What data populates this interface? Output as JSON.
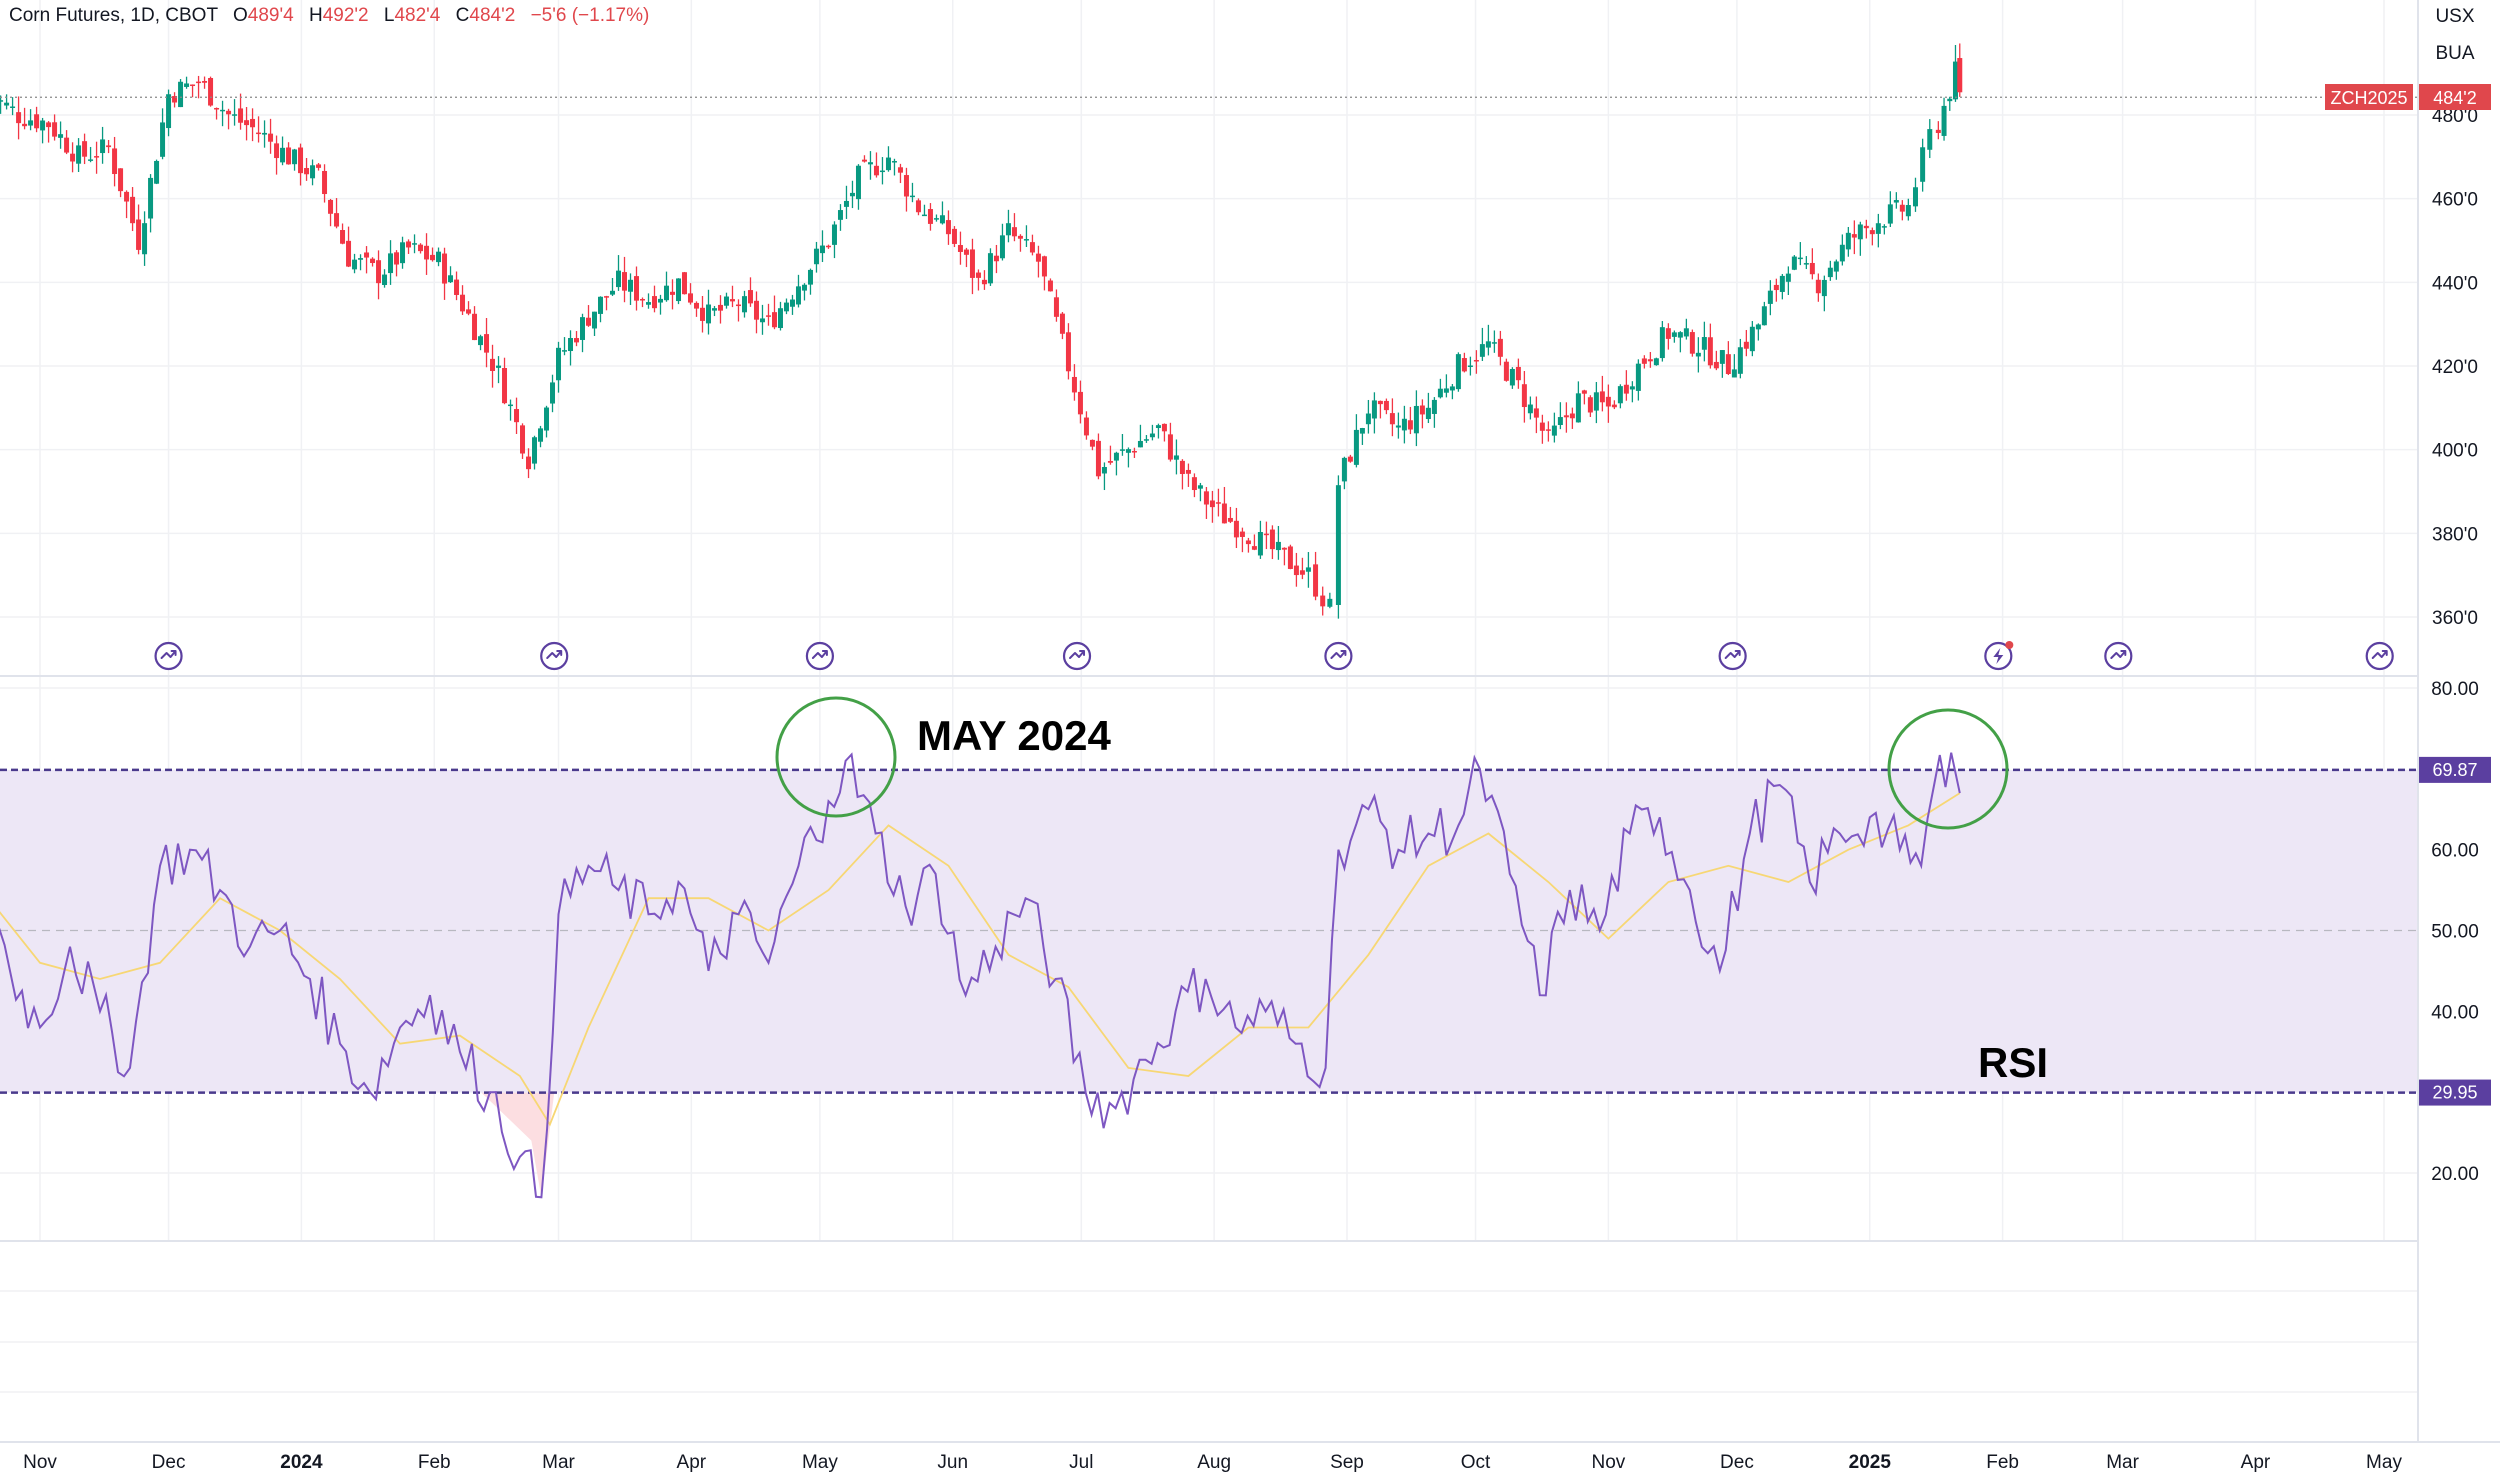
{
  "header": {
    "symbol": "Corn Futures, 1D, CBOT",
    "open_label": "O",
    "open": "489'4",
    "high_label": "H",
    "high": "492'2",
    "low_label": "L",
    "low": "482'4",
    "close_label": "C",
    "close": "484'2",
    "change": "−5'6 (−1.17%)"
  },
  "right_panel": {
    "currency": "USX",
    "unit": "BUA"
  },
  "price_tag": {
    "symbol": "ZCH2025",
    "value": "484'2"
  },
  "rsi_tags": {
    "upper": "69.87",
    "lower": "29.95"
  },
  "annotations": {
    "may": "MAY 2024",
    "rsi": "RSI"
  },
  "colors": {
    "up": "#089981",
    "down": "#f23645",
    "rsi": "#7e57c2",
    "rsi_ma": "#f7d774",
    "band": "#ede7f6",
    "circle": "#43a047"
  },
  "icons": [
    "event-icon",
    "event-icon",
    "event-icon",
    "event-icon",
    "event-icon",
    "event-icon",
    "flash-event-icon",
    "event-icon",
    "event-icon"
  ],
  "chart_data": [
    {
      "type": "candlestick",
      "title": "Corn Futures, 1D, CBOT",
      "x_ticks": [
        "Nov",
        "Dec",
        "2024",
        "Feb",
        "Mar",
        "Apr",
        "May",
        "Jun",
        "Jul",
        "Aug",
        "Sep",
        "Oct",
        "Nov",
        "Dec",
        "2025",
        "Feb",
        "Mar",
        "Apr",
        "May"
      ],
      "y_ticks": [
        "360'0",
        "380'0",
        "400'0",
        "420'0",
        "440'0",
        "460'0",
        "480'0"
      ],
      "ylim": [
        350,
        495
      ],
      "last_close": 484.25,
      "close_path": [
        {
          "x": "2023-10-20",
          "y": 485
        },
        {
          "x": "2023-10-27",
          "y": 480
        },
        {
          "x": "2023-11-03",
          "y": 478
        },
        {
          "x": "2023-11-10",
          "y": 470
        },
        {
          "x": "2023-11-17",
          "y": 472
        },
        {
          "x": "2023-11-24",
          "y": 450
        },
        {
          "x": "2023-12-01",
          "y": 485
        },
        {
          "x": "2023-12-08",
          "y": 488
        },
        {
          "x": "2023-12-15",
          "y": 480
        },
        {
          "x": "2023-12-22",
          "y": 476
        },
        {
          "x": "2023-12-29",
          "y": 470
        },
        {
          "x": "2024-01-05",
          "y": 465
        },
        {
          "x": "2024-01-12",
          "y": 446
        },
        {
          "x": "2024-01-19",
          "y": 442
        },
        {
          "x": "2024-01-26",
          "y": 448
        },
        {
          "x": "2024-02-02",
          "y": 445
        },
        {
          "x": "2024-02-09",
          "y": 432
        },
        {
          "x": "2024-02-16",
          "y": 418
        },
        {
          "x": "2024-02-23",
          "y": 398
        },
        {
          "x": "2024-03-01",
          "y": 422
        },
        {
          "x": "2024-03-08",
          "y": 432
        },
        {
          "x": "2024-03-15",
          "y": 440
        },
        {
          "x": "2024-03-22",
          "y": 436
        },
        {
          "x": "2024-03-29",
          "y": 440
        },
        {
          "x": "2024-04-05",
          "y": 432
        },
        {
          "x": "2024-04-12",
          "y": 435
        },
        {
          "x": "2024-04-19",
          "y": 430
        },
        {
          "x": "2024-04-26",
          "y": 440
        },
        {
          "x": "2024-05-03",
          "y": 450
        },
        {
          "x": "2024-05-10",
          "y": 465
        },
        {
          "x": "2024-05-17",
          "y": 470
        },
        {
          "x": "2024-05-24",
          "y": 458
        },
        {
          "x": "2024-05-31",
          "y": 452
        },
        {
          "x": "2024-06-07",
          "y": 440
        },
        {
          "x": "2024-06-14",
          "y": 452
        },
        {
          "x": "2024-06-21",
          "y": 445
        },
        {
          "x": "2024-06-28",
          "y": 420
        },
        {
          "x": "2024-07-05",
          "y": 395
        },
        {
          "x": "2024-07-12",
          "y": 400
        },
        {
          "x": "2024-07-19",
          "y": 405
        },
        {
          "x": "2024-07-26",
          "y": 392
        },
        {
          "x": "2024-08-02",
          "y": 385
        },
        {
          "x": "2024-08-09",
          "y": 380
        },
        {
          "x": "2024-08-16",
          "y": 375
        },
        {
          "x": "2024-08-23",
          "y": 370
        },
        {
          "x": "2024-08-28",
          "y": 362
        },
        {
          "x": "2024-08-30",
          "y": 392
        },
        {
          "x": "2024-09-06",
          "y": 410
        },
        {
          "x": "2024-09-13",
          "y": 405
        },
        {
          "x": "2024-09-20",
          "y": 410
        },
        {
          "x": "2024-09-27",
          "y": 420
        },
        {
          "x": "2024-10-04",
          "y": 425
        },
        {
          "x": "2024-10-11",
          "y": 415
        },
        {
          "x": "2024-10-18",
          "y": 402
        },
        {
          "x": "2024-10-25",
          "y": 412
        },
        {
          "x": "2024-11-01",
          "y": 410
        },
        {
          "x": "2024-11-08",
          "y": 420
        },
        {
          "x": "2024-11-15",
          "y": 428
        },
        {
          "x": "2024-11-22",
          "y": 425
        },
        {
          "x": "2024-11-29",
          "y": 420
        },
        {
          "x": "2024-12-06",
          "y": 430
        },
        {
          "x": "2024-12-13",
          "y": 445
        },
        {
          "x": "2024-12-20",
          "y": 440
        },
        {
          "x": "2024-12-27",
          "y": 450
        },
        {
          "x": "2025-01-03",
          "y": 455
        },
        {
          "x": "2025-01-10",
          "y": 458
        },
        {
          "x": "2025-01-15",
          "y": 475
        },
        {
          "x": "2025-01-17",
          "y": 478
        },
        {
          "x": "2025-01-21",
          "y": 490
        },
        {
          "x": "2025-01-22",
          "y": 484.25
        }
      ]
    },
    {
      "type": "line",
      "title": "",
      "y_ticks": [
        "20.00",
        "40.00",
        "50.00",
        "60.00",
        "80.00"
      ],
      "ylim": [
        12,
        82
      ],
      "bands": [
        29.95,
        69.87
      ],
      "midline": 50,
      "series": [
        {
          "values": [
            {
              "x": "2023-10-20",
              "y": 55
            },
            {
              "x": "2023-10-25",
              "y": 45
            },
            {
              "x": "2023-11-01",
              "y": 38
            },
            {
              "x": "2023-11-08",
              "y": 48
            },
            {
              "x": "2023-11-15",
              "y": 40
            },
            {
              "x": "2023-11-22",
              "y": 33
            },
            {
              "x": "2023-11-29",
              "y": 58
            },
            {
              "x": "2023-12-06",
              "y": 60
            },
            {
              "x": "2023-12-13",
              "y": 55
            },
            {
              "x": "2023-12-20",
              "y": 48
            },
            {
              "x": "2023-12-27",
              "y": 50
            },
            {
              "x": "2024-01-03",
              "y": 44
            },
            {
              "x": "2024-01-10",
              "y": 36
            },
            {
              "x": "2024-01-17",
              "y": 30
            },
            {
              "x": "2024-01-24",
              "y": 38
            },
            {
              "x": "2024-01-31",
              "y": 42
            },
            {
              "x": "2024-02-07",
              "y": 35
            },
            {
              "x": "2024-02-14",
              "y": 30
            },
            {
              "x": "2024-02-21",
              "y": 22
            },
            {
              "x": "2024-02-26",
              "y": 17
            },
            {
              "x": "2024-03-01",
              "y": 52
            },
            {
              "x": "2024-03-08",
              "y": 58
            },
            {
              "x": "2024-03-15",
              "y": 55
            },
            {
              "x": "2024-03-22",
              "y": 52
            },
            {
              "x": "2024-03-29",
              "y": 56
            },
            {
              "x": "2024-04-05",
              "y": 45
            },
            {
              "x": "2024-04-12",
              "y": 52
            },
            {
              "x": "2024-04-19",
              "y": 46
            },
            {
              "x": "2024-04-26",
              "y": 58
            },
            {
              "x": "2024-05-03",
              "y": 66
            },
            {
              "x": "2024-05-07",
              "y": 71
            },
            {
              "x": "2024-05-14",
              "y": 62
            },
            {
              "x": "2024-05-21",
              "y": 53
            },
            {
              "x": "2024-05-28",
              "y": 57
            },
            {
              "x": "2024-06-04",
              "y": 42
            },
            {
              "x": "2024-06-11",
              "y": 48
            },
            {
              "x": "2024-06-18",
              "y": 54
            },
            {
              "x": "2024-06-25",
              "y": 44
            },
            {
              "x": "2024-07-02",
              "y": 30
            },
            {
              "x": "2024-07-09",
              "y": 28
            },
            {
              "x": "2024-07-16",
              "y": 34
            },
            {
              "x": "2024-07-23",
              "y": 40
            },
            {
              "x": "2024-07-30",
              "y": 44
            },
            {
              "x": "2024-08-06",
              "y": 38
            },
            {
              "x": "2024-08-13",
              "y": 40
            },
            {
              "x": "2024-08-20",
              "y": 36
            },
            {
              "x": "2024-08-27",
              "y": 33
            },
            {
              "x": "2024-08-30",
              "y": 60
            },
            {
              "x": "2024-09-06",
              "y": 65
            },
            {
              "x": "2024-09-13",
              "y": 60
            },
            {
              "x": "2024-09-20",
              "y": 62
            },
            {
              "x": "2024-09-27",
              "y": 63
            },
            {
              "x": "2024-10-02",
              "y": 70
            },
            {
              "x": "2024-10-09",
              "y": 57
            },
            {
              "x": "2024-10-16",
              "y": 42
            },
            {
              "x": "2024-10-23",
              "y": 55
            },
            {
              "x": "2024-10-30",
              "y": 50
            },
            {
              "x": "2024-11-06",
              "y": 62
            },
            {
              "x": "2024-11-13",
              "y": 64
            },
            {
              "x": "2024-11-20",
              "y": 55
            },
            {
              "x": "2024-11-27",
              "y": 45
            },
            {
              "x": "2024-12-04",
              "y": 62
            },
            {
              "x": "2024-12-11",
              "y": 68
            },
            {
              "x": "2024-12-18",
              "y": 56
            },
            {
              "x": "2024-12-25",
              "y": 62
            },
            {
              "x": "2025-01-01",
              "y": 64
            },
            {
              "x": "2025-01-08",
              "y": 60
            },
            {
              "x": "2025-01-13",
              "y": 58
            },
            {
              "x": "2025-01-16",
              "y": 68
            },
            {
              "x": "2025-01-20",
              "y": 72
            },
            {
              "x": "2025-01-22",
              "y": 67
            }
          ]
        },
        {
          "values": [
            {
              "x": "2023-10-20",
              "y": 54
            },
            {
              "x": "2023-11-01",
              "y": 46
            },
            {
              "x": "2023-11-15",
              "y": 44
            },
            {
              "x": "2023-11-29",
              "y": 46
            },
            {
              "x": "2023-12-13",
              "y": 54
            },
            {
              "x": "2023-12-27",
              "y": 50
            },
            {
              "x": "2024-01-10",
              "y": 44
            },
            {
              "x": "2024-01-24",
              "y": 36
            },
            {
              "x": "2024-02-07",
              "y": 37
            },
            {
              "x": "2024-02-21",
              "y": 32
            },
            {
              "x": "2024-02-28",
              "y": 26
            },
            {
              "x": "2024-03-08",
              "y": 38
            },
            {
              "x": "2024-03-22",
              "y": 54
            },
            {
              "x": "2024-04-05",
              "y": 54
            },
            {
              "x": "2024-04-19",
              "y": 50
            },
            {
              "x": "2024-05-03",
              "y": 55
            },
            {
              "x": "2024-05-17",
              "y": 63
            },
            {
              "x": "2024-05-31",
              "y": 58
            },
            {
              "x": "2024-06-14",
              "y": 47
            },
            {
              "x": "2024-06-28",
              "y": 43
            },
            {
              "x": "2024-07-12",
              "y": 33
            },
            {
              "x": "2024-07-26",
              "y": 32
            },
            {
              "x": "2024-08-09",
              "y": 38
            },
            {
              "x": "2024-08-23",
              "y": 38
            },
            {
              "x": "2024-09-06",
              "y": 47
            },
            {
              "x": "2024-09-20",
              "y": 58
            },
            {
              "x": "2024-10-04",
              "y": 62
            },
            {
              "x": "2024-10-18",
              "y": 56
            },
            {
              "x": "2024-11-01",
              "y": 49
            },
            {
              "x": "2024-11-15",
              "y": 56
            },
            {
              "x": "2024-11-29",
              "y": 58
            },
            {
              "x": "2024-12-13",
              "y": 56
            },
            {
              "x": "2024-12-27",
              "y": 60
            },
            {
              "x": "2025-01-10",
              "y": 63
            },
            {
              "x": "2025-01-22",
              "y": 67
            }
          ]
        }
      ]
    }
  ]
}
